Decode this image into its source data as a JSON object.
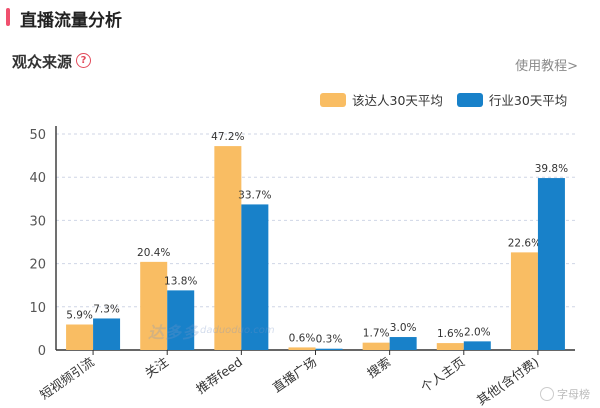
{
  "header": {
    "title": "直播流量分析"
  },
  "section": {
    "title": "观众来源",
    "help_icon": "question-circle-icon",
    "link_label": "使用教程>"
  },
  "colors": {
    "accent": "#f0506e",
    "series_a": "#f9bd63",
    "series_b": "#1881c9",
    "axis": "#333333",
    "grid": "#cfd6e6"
  },
  "watermark": {
    "logo": "达多多",
    "domain": "daduoduo.com"
  },
  "footer": {
    "credit": "字母榜"
  },
  "chart_data": {
    "type": "bar",
    "categories": [
      "短视频引流",
      "关注",
      "推荐feed",
      "直播广场",
      "搜索",
      "个人主页",
      "其他(含付费)"
    ],
    "series": [
      {
        "name": "该达人30天平均",
        "values": [
          5.9,
          20.4,
          47.2,
          0.6,
          1.7,
          1.6,
          22.6
        ],
        "labels": [
          "5.9%",
          "20.4%",
          "47.2%",
          "0.6%",
          "1.7%",
          "1.6%",
          "22.6%"
        ]
      },
      {
        "name": "行业30天平均",
        "values": [
          7.3,
          13.8,
          33.7,
          0.3,
          3.0,
          2.0,
          39.8
        ],
        "labels": [
          "7.3%",
          "13.8%",
          "33.7%",
          "0.3%",
          "3.0%",
          "2.0%",
          "39.8%"
        ]
      }
    ],
    "yticks": [
      0,
      10,
      20,
      30,
      40,
      50
    ],
    "ylim": [
      0,
      50
    ],
    "grid": true,
    "legend": "top-right"
  }
}
